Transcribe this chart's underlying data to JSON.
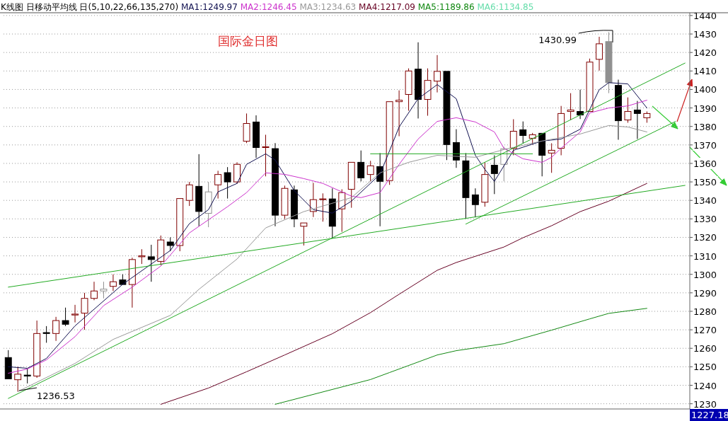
{
  "chart_data": {
    "type": "candlestick",
    "title": "国际金日图",
    "annotations": [
      "K线图 日移动平均线 日(5,10,22,66,135,270)",
      "1430.99",
      "1236.53",
      "1227.18"
    ],
    "categories": [
      null,
      null,
      null,
      null,
      null,
      null,
      null,
      null,
      null,
      null,
      null,
      null,
      null,
      null,
      null,
      null,
      null,
      null,
      null,
      null,
      null,
      null,
      null,
      null,
      null,
      null,
      null,
      null,
      null,
      null,
      null,
      null,
      null,
      null,
      null,
      null,
      null,
      null,
      null,
      null,
      null,
      null,
      null,
      null,
      null,
      null,
      null,
      null,
      null,
      null,
      null,
      null,
      null,
      null,
      null,
      null,
      null,
      null,
      null,
      null,
      null,
      null,
      null,
      null,
      null,
      null,
      null,
      null,
      null,
      null,
      null,
      null
    ],
    "ohlc": [
      [
        1255,
        1259,
        1243,
        1243.5
      ],
      [
        1243,
        1250,
        1236.53,
        1246
      ],
      [
        1245.5,
        1249,
        1241,
        1245
      ],
      [
        1245,
        1275,
        1244,
        1268
      ],
      [
        1268.5,
        1272,
        1263,
        1268
      ],
      [
        1268,
        1277,
        1264,
        1275
      ],
      [
        1275,
        1282,
        1272,
        1273
      ],
      [
        1278,
        1283.5,
        1274,
        1278.5
      ],
      [
        1279,
        1290,
        1270,
        1287
      ],
      [
        1287,
        1296,
        1286,
        1291
      ],
      [
        1291,
        1296,
        1287,
        1292
      ],
      [
        1293.5,
        1300,
        1291,
        1296
      ],
      [
        1297,
        1300,
        1294,
        1294.5
      ],
      [
        1294.5,
        1309,
        1282,
        1308
      ],
      [
        1309.5,
        1313.6,
        1305.6,
        1310
      ],
      [
        1309.5,
        1316,
        1296,
        1308
      ],
      [
        1307,
        1321,
        1305,
        1318.6
      ],
      [
        1317.5,
        1320,
        1312.5,
        1315.6
      ],
      [
        1315.6,
        1341.5,
        1312.5,
        1341
      ],
      [
        1340,
        1350,
        1337,
        1348.4
      ],
      [
        1347.6,
        1365,
        1326,
        1334
      ],
      [
        1333,
        1350,
        1325.5,
        1344.6
      ],
      [
        1348.4,
        1356,
        1341,
        1354
      ],
      [
        1355,
        1358,
        1341,
        1350
      ],
      [
        1350,
        1360.6,
        1349,
        1359.5
      ],
      [
        1372,
        1387,
        1371,
        1381.6
      ],
      [
        1382.4,
        1386,
        1363,
        1368.6
      ],
      [
        1368.6,
        1375.5,
        1353,
        1369
      ],
      [
        1368,
        1371,
        1326,
        1332
      ],
      [
        1332,
        1348,
        1330,
        1346.5
      ],
      [
        1345.7,
        1348,
        1325.5,
        1330
      ],
      [
        1326,
        1328.5,
        1315.6,
        1327.8
      ],
      [
        1334,
        1349.5,
        1331,
        1340.4
      ],
      [
        1340.5,
        1343.8,
        1328.5,
        1340.8
      ],
      [
        1340.8,
        1346.5,
        1319.4,
        1326
      ],
      [
        1335.4,
        1346,
        1323,
        1344.2
      ],
      [
        1346,
        1361,
        1336,
        1360.6
      ],
      [
        1360.6,
        1367,
        1350.3,
        1352.2
      ],
      [
        1354,
        1361.4,
        1350.3,
        1358.7
      ],
      [
        1358.3,
        1365.6,
        1326,
        1350.3
      ],
      [
        1350.7,
        1394,
        1348.4,
        1393.4
      ],
      [
        1393.4,
        1399.5,
        1374.7,
        1394.2
      ],
      [
        1397.3,
        1411.4,
        1388.5,
        1410
      ],
      [
        1411,
        1425.5,
        1384.3,
        1394.6
      ],
      [
        1394.6,
        1411.4,
        1385.8,
        1404.9
      ],
      [
        1404.5,
        1418.6,
        1398.4,
        1409.8
      ],
      [
        1409.8,
        1410.5,
        1361.8,
        1370.2
      ],
      [
        1371.3,
        1378.5,
        1357.6,
        1361.8
      ],
      [
        1361.4,
        1365.6,
        1330,
        1341.5
      ],
      [
        1343,
        1346.5,
        1330.8,
        1337.7
      ],
      [
        1339,
        1360.6,
        1336.6,
        1354
      ],
      [
        1359,
        1364.4,
        1343.4,
        1354.5
      ],
      [
        1359.5,
        1369,
        1350.3,
        1367.9
      ],
      [
        1368.2,
        1383.9,
        1364.4,
        1377.4
      ],
      [
        1378.2,
        1382.7,
        1370.9,
        1375.1
      ],
      [
        1373.6,
        1376.5,
        1370.2,
        1375.5
      ],
      [
        1376.3,
        1377,
        1353,
        1364.4
      ],
      [
        1365.6,
        1370.9,
        1354.9,
        1367.1
      ],
      [
        1368.2,
        1391.1,
        1364.4,
        1387
      ],
      [
        1388.1,
        1398,
        1383.5,
        1388.9
      ],
      [
        1388.1,
        1399.9,
        1384,
        1386.2
      ],
      [
        1388.1,
        1416.7,
        1387.5,
        1414.8
      ],
      [
        1416.3,
        1428.5,
        1410.2,
        1424.7
      ],
      [
        1425.9,
        1430.99,
        1398,
        1403.7
      ],
      [
        1402.2,
        1405.3,
        1372.8,
        1383.1
      ],
      [
        1383.5,
        1395.7,
        1382,
        1388.1
      ],
      [
        1388.9,
        1393.8,
        1373.2,
        1387
      ],
      [
        1384.7,
        1388.1,
        1382,
        1387
      ],
      null,
      null,
      null,
      null
    ],
    "colors": [
      "#000000",
      "#800000",
      "#000000",
      "#800000",
      "#000000",
      "#800000",
      "#000000",
      "#800000",
      "#800000",
      "#800000",
      "#909090",
      "#800000",
      "#000000",
      "#800000",
      "#800000",
      "#000000",
      "#800000",
      "#000000",
      "#800000",
      "#800000",
      "#000000",
      "#909090",
      "#800000",
      "#000000",
      "#800000",
      "#800000",
      "#000000",
      "#800000",
      "#000000",
      "#800000",
      "#000000",
      "#800000",
      "#800000",
      "#800000",
      "#000000",
      "#800000",
      "#800000",
      "#000000",
      "#800000",
      "#000000",
      "#800000",
      "#800000",
      "#800000",
      "#000000",
      "#800000",
      "#800000",
      "#000000",
      "#000000",
      "#000000",
      "#000000",
      "#800000",
      "#000000",
      "#909090",
      "#800000",
      "#000000",
      "#800000",
      "#000000",
      "#800000",
      "#800000",
      "#800000",
      "#000000",
      "#800000",
      "#800000",
      "#909090",
      "#000000",
      "#800000",
      "#000000",
      "#800000",
      null,
      null,
      null,
      null
    ],
    "series": [
      {
        "name": "MA1:1249.97",
        "color": "#101050",
        "type": "line",
        "values": [
          1250,
          null,
          1249.2,
          null,
          1254.5,
          null,
          null,
          1272.1,
          null,
          null,
          null,
          null,
          1294.6,
          null,
          null,
          null,
          null,
          1312.9,
          null,
          1327.4,
          null,
          1335,
          1344.6,
          null,
          1349.2,
          1359.5,
          null,
          1365.2,
          1361.8,
          null,
          1345.3,
          null,
          1335,
          null,
          1333.1,
          null,
          1339.6,
          null,
          null,
          1354.1,
          null,
          1379.7,
          null,
          1395,
          null,
          1402.6,
          null,
          1395,
          null,
          1364.4,
          1356.8,
          1350.3,
          null,
          1367.1,
          null,
          null,
          1372.1,
          null,
          1373.2,
          null,
          1378.5,
          null,
          1399.9,
          1403.7,
          null,
          1403,
          null,
          1390,
          null,
          null,
          null,
          null
        ]
      },
      {
        "name": "MA2:1246.45",
        "color": "#cc33cc",
        "type": "line",
        "values": [
          1246.5,
          null,
          1248.8,
          null,
          1253.7,
          null,
          null,
          1266.3,
          null,
          null,
          1283.1,
          null,
          null,
          1293.1,
          null,
          null,
          1304.5,
          null,
          null,
          1322.4,
          null,
          null,
          null,
          1336.6,
          null,
          1344.2,
          null,
          1354.9,
          null,
          1354.1,
          null,
          1351.8,
          null,
          1349.2,
          null,
          null,
          1342.3,
          1341.5,
          null,
          1344.2,
          null,
          1359.5,
          null,
          1373.2,
          null,
          1382.7,
          null,
          1384.7,
          null,
          1382.4,
          null,
          1377,
          1368.2,
          null,
          1362.5,
          null,
          1360.6,
          1363.3,
          1368.2,
          null,
          1377,
          1387.3,
          null,
          1390,
          null,
          1391.1,
          null,
          1394.2,
          null,
          null,
          null,
          null
        ]
      },
      {
        "name": "MA3:1234.63",
        "color": "#999999",
        "type": "line",
        "values": [
          null,
          1236.6,
          null,
          null,
          null,
          null,
          null,
          1251.8,
          null,
          null,
          null,
          1264.8,
          null,
          null,
          null,
          null,
          null,
          1277.8,
          null,
          null,
          1291.9,
          null,
          null,
          null,
          1308.3,
          null,
          null,
          1325.1,
          null,
          null,
          null,
          1333.9,
          null,
          null,
          null,
          null,
          1341.5,
          null,
          null,
          1354.9,
          null,
          null,
          1360.6,
          null,
          null,
          1364.4,
          null,
          null,
          null,
          1363.3,
          null,
          null,
          1367.5,
          null,
          null,
          null,
          1372.1,
          null,
          null,
          null,
          1375.9,
          null,
          null,
          1380.5,
          null,
          1379.7,
          null,
          1377,
          null,
          null,
          null,
          null
        ]
      },
      {
        "name": "MA4:1217.09",
        "color": "#660022",
        "type": "line",
        "values": [
          null,
          null,
          null,
          null,
          null,
          null,
          null,
          null,
          null,
          null,
          null,
          null,
          null,
          null,
          null,
          null,
          1229.7,
          null,
          null,
          null,
          null,
          1238.5,
          null,
          null,
          null,
          1247.3,
          null,
          null,
          null,
          1256.4,
          null,
          null,
          null,
          null,
          1267.9,
          null,
          null,
          null,
          1279.3,
          null,
          null,
          1289.2,
          null,
          null,
          null,
          1302.2,
          null,
          1306.4,
          null,
          null,
          null,
          null,
          1314.8,
          null,
          1319.8,
          null,
          null,
          1326.3,
          null,
          null,
          1333.9,
          null,
          null,
          1339.6,
          null,
          null,
          null,
          1349.2,
          null,
          null,
          null,
          null
        ]
      },
      {
        "name": "MA5:1189.86",
        "color": "#118811",
        "type": "line",
        "values": [
          null,
          null,
          null,
          null,
          null,
          null,
          null,
          null,
          null,
          null,
          null,
          null,
          null,
          null,
          null,
          null,
          null,
          null,
          null,
          null,
          null,
          null,
          null,
          null,
          null,
          null,
          null,
          null,
          1229.7,
          null,
          null,
          null,
          null,
          null,
          null,
          null,
          null,
          null,
          1243.1,
          null,
          1246.9,
          null,
          null,
          null,
          null,
          1256.4,
          null,
          1258.7,
          null,
          null,
          null,
          null,
          1262.5,
          null,
          null,
          null,
          null,
          1269.8,
          null,
          null,
          null,
          1275.9,
          null,
          1278.9,
          null,
          null,
          null,
          1281.6,
          null,
          null,
          null,
          null
        ]
      },
      {
        "name": "MA6:1134.85",
        "color": "#66ddaa",
        "type": "line",
        "values": [
          null,
          null,
          null,
          null,
          null,
          null,
          null,
          null,
          null,
          null,
          null,
          null,
          null,
          null,
          null,
          null,
          null,
          null,
          null,
          null,
          null,
          null,
          null,
          null,
          null,
          null,
          null,
          null,
          null,
          null,
          null,
          null,
          null,
          null,
          null,
          null,
          null,
          null,
          null,
          null,
          null,
          null,
          null,
          null,
          null,
          null,
          null,
          null,
          null,
          null,
          null,
          null,
          null,
          null,
          null,
          null,
          null,
          null,
          null,
          null,
          null,
          null,
          null,
          null,
          null,
          null,
          null,
          null,
          null,
          null,
          null,
          null
        ]
      },
      {
        "color": "#22aa22",
        "type": "line",
        "values": [
          1293.1,
          null,
          null,
          null,
          null,
          null,
          null,
          null,
          null,
          null,
          null,
          null,
          null,
          null,
          null,
          null,
          null,
          null,
          null,
          null,
          null,
          null,
          null,
          null,
          null,
          null,
          null,
          null,
          null,
          null,
          null,
          null,
          null,
          null,
          null,
          null,
          null,
          null,
          null,
          null,
          null,
          null,
          null,
          null,
          null,
          null,
          null,
          null,
          null,
          null,
          null,
          null,
          null,
          null,
          null,
          null,
          null,
          null,
          null,
          null,
          null,
          null,
          null,
          null,
          null,
          null,
          null,
          null,
          null,
          null,
          null,
          1348.1
        ]
      },
      {
        "color": "#22aa22",
        "type": "line",
        "values": [
          1232.9,
          null,
          null,
          null,
          null,
          null,
          null,
          null,
          null,
          null,
          null,
          null,
          null,
          null,
          null,
          null,
          null,
          null,
          null,
          null,
          null,
          null,
          null,
          null,
          null,
          null,
          null,
          null,
          null,
          null,
          null,
          null,
          null,
          null,
          null,
          null,
          null,
          null,
          null,
          null,
          null,
          null,
          null,
          null,
          null,
          null,
          null,
          null,
          null,
          null,
          null,
          null,
          null,
          null,
          null,
          null,
          null,
          null,
          null,
          null,
          null,
          null,
          null,
          null,
          null,
          null,
          null,
          null,
          null,
          null,
          null,
          1414.3
        ]
      },
      {
        "color": "#22aa22",
        "type": "line",
        "values": [
          null,
          null,
          null,
          null,
          null,
          null,
          null,
          null,
          null,
          null,
          null,
          null,
          null,
          null,
          null,
          null,
          null,
          null,
          null,
          null,
          null,
          null,
          null,
          null,
          null,
          null,
          null,
          null,
          null,
          null,
          null,
          null,
          null,
          null,
          null,
          null,
          null,
          null,
          null,
          null,
          null,
          null,
          null,
          null,
          null,
          null,
          null,
          null,
          1327.2,
          null,
          null,
          null,
          null,
          null,
          null,
          null,
          null,
          null,
          null,
          null,
          null,
          null,
          null,
          null,
          null,
          null,
          null,
          null,
          null,
          null,
          1382.7,
          null
        ]
      },
      {
        "color": "#22aa22",
        "type": "line",
        "values": [
          null,
          null,
          null,
          null,
          null,
          null,
          null,
          null,
          null,
          null,
          null,
          null,
          null,
          null,
          null,
          null,
          null,
          null,
          null,
          null,
          null,
          null,
          null,
          null,
          null,
          null,
          null,
          null,
          null,
          null,
          null,
          null,
          null,
          null,
          null,
          null,
          null,
          null,
          1365.2,
          null,
          null,
          null,
          null,
          null,
          null,
          null,
          null,
          null,
          null,
          null,
          null,
          null,
          null,
          null,
          null,
          1365.2,
          null,
          null,
          null,
          null,
          null,
          null,
          null,
          null,
          null,
          null,
          null,
          null,
          null,
          null,
          null,
          null
        ]
      }
    ],
    "ylim": [
      1227.18,
      1441.5
    ],
    "yticks": [
      1230,
      1240,
      1250,
      1260,
      1270,
      1280,
      1290,
      1300,
      1310,
      1320,
      1330,
      1340,
      1350,
      1360,
      1370,
      1380,
      1390,
      1400,
      1410,
      1420,
      1430,
      1440
    ],
    "grid": "y",
    "legend": "top left"
  }
}
